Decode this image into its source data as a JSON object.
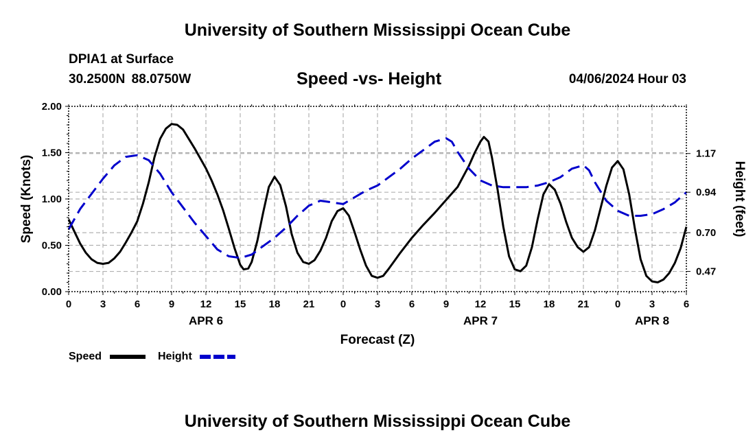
{
  "page": {
    "title": "University of Southern Mississippi Ocean Cube",
    "footer_title": "University of Southern Mississippi Ocean Cube",
    "station": "DPIA1 at Surface",
    "coordinates": "30.2500N  88.0750W",
    "datetime": "04/06/2024 Hour 03"
  },
  "colors": {
    "speed": "#000000",
    "height": "#0000cc",
    "grid": "#b0b0b0",
    "axis": "#000000"
  },
  "chart_data": {
    "type": "line",
    "title": "Speed -vs- Height",
    "xlabel": "Forecast (Z)",
    "ylabel": "Speed (Knots)",
    "y2label": "Height (feet)",
    "x_unit": "hours since 00Z APR 6",
    "xlim": [
      0,
      54
    ],
    "ylim": [
      0,
      2
    ],
    "y2lim": [
      0.35,
      1.45
    ],
    "grid": true,
    "x_ticks": [
      {
        "x": 0,
        "label": "0"
      },
      {
        "x": 3,
        "label": "3"
      },
      {
        "x": 6,
        "label": "6"
      },
      {
        "x": 9,
        "label": "9"
      },
      {
        "x": 12,
        "label": "12"
      },
      {
        "x": 15,
        "label": "15"
      },
      {
        "x": 18,
        "label": "18"
      },
      {
        "x": 21,
        "label": "21"
      },
      {
        "x": 24,
        "label": "0"
      },
      {
        "x": 27,
        "label": "3"
      },
      {
        "x": 30,
        "label": "6"
      },
      {
        "x": 33,
        "label": "9"
      },
      {
        "x": 36,
        "label": "12"
      },
      {
        "x": 39,
        "label": "15"
      },
      {
        "x": 42,
        "label": "18"
      },
      {
        "x": 45,
        "label": "21"
      },
      {
        "x": 48,
        "label": "0"
      },
      {
        "x": 51,
        "label": "3"
      },
      {
        "x": 54,
        "label": "6"
      }
    ],
    "date_labels": [
      {
        "x": 12,
        "label": "APR 6"
      },
      {
        "x": 36,
        "label": "APR 7"
      },
      {
        "x": 51,
        "label": "APR 8"
      }
    ],
    "y_ticks": [
      {
        "v": 0.0,
        "label": "0.00"
      },
      {
        "v": 0.5,
        "label": "0.50"
      },
      {
        "v": 1.0,
        "label": "1.00"
      },
      {
        "v": 1.5,
        "label": "1.50"
      },
      {
        "v": 2.0,
        "label": "2.00"
      }
    ],
    "y2_ticks": [
      {
        "v": 0.47,
        "label": "0.47"
      },
      {
        "v": 0.7,
        "label": "0.70"
      },
      {
        "v": 0.94,
        "label": "0.94"
      },
      {
        "v": 1.17,
        "label": "1.17"
      }
    ],
    "legend": {
      "position": "bottom-left",
      "entries": [
        {
          "name": "Speed",
          "style": "solid",
          "color_key": "speed"
        },
        {
          "name": "Height",
          "style": "dashed",
          "color_key": "height"
        }
      ]
    },
    "series": [
      {
        "name": "Speed",
        "axis": "left",
        "style": "solid",
        "points": [
          [
            0,
            0.78
          ],
          [
            0.5,
            0.65
          ],
          [
            1,
            0.52
          ],
          [
            1.5,
            0.42
          ],
          [
            2,
            0.35
          ],
          [
            2.5,
            0.31
          ],
          [
            3,
            0.3
          ],
          [
            3.5,
            0.31
          ],
          [
            4,
            0.36
          ],
          [
            4.5,
            0.43
          ],
          [
            5,
            0.53
          ],
          [
            5.5,
            0.64
          ],
          [
            6,
            0.76
          ],
          [
            6.5,
            0.95
          ],
          [
            7,
            1.18
          ],
          [
            7.5,
            1.45
          ],
          [
            8,
            1.65
          ],
          [
            8.5,
            1.76
          ],
          [
            9,
            1.81
          ],
          [
            9.5,
            1.8
          ],
          [
            10,
            1.75
          ],
          [
            10.5,
            1.65
          ],
          [
            11,
            1.55
          ],
          [
            11.5,
            1.44
          ],
          [
            12,
            1.33
          ],
          [
            12.5,
            1.2
          ],
          [
            13,
            1.05
          ],
          [
            13.5,
            0.88
          ],
          [
            14,
            0.68
          ],
          [
            14.5,
            0.47
          ],
          [
            15,
            0.29
          ],
          [
            15.3,
            0.24
          ],
          [
            15.7,
            0.25
          ],
          [
            16,
            0.32
          ],
          [
            16.5,
            0.55
          ],
          [
            17,
            0.85
          ],
          [
            17.5,
            1.13
          ],
          [
            18,
            1.24
          ],
          [
            18.5,
            1.15
          ],
          [
            19,
            0.92
          ],
          [
            19.5,
            0.62
          ],
          [
            20,
            0.42
          ],
          [
            20.5,
            0.32
          ],
          [
            21,
            0.3
          ],
          [
            21.5,
            0.34
          ],
          [
            22,
            0.44
          ],
          [
            22.5,
            0.58
          ],
          [
            23,
            0.76
          ],
          [
            23.5,
            0.87
          ],
          [
            24,
            0.9
          ],
          [
            24.5,
            0.82
          ],
          [
            25,
            0.64
          ],
          [
            25.5,
            0.45
          ],
          [
            26,
            0.28
          ],
          [
            26.5,
            0.17
          ],
          [
            27,
            0.15
          ],
          [
            27.5,
            0.17
          ],
          [
            28,
            0.25
          ],
          [
            29,
            0.42
          ],
          [
            30,
            0.58
          ],
          [
            31,
            0.72
          ],
          [
            32,
            0.85
          ],
          [
            33,
            0.99
          ],
          [
            34,
            1.13
          ],
          [
            35,
            1.36
          ],
          [
            35.5,
            1.5
          ],
          [
            36,
            1.62
          ],
          [
            36.3,
            1.67
          ],
          [
            36.7,
            1.62
          ],
          [
            37,
            1.45
          ],
          [
            37.5,
            1.1
          ],
          [
            38,
            0.7
          ],
          [
            38.5,
            0.38
          ],
          [
            39,
            0.24
          ],
          [
            39.5,
            0.22
          ],
          [
            40,
            0.28
          ],
          [
            40.5,
            0.48
          ],
          [
            41,
            0.78
          ],
          [
            41.5,
            1.05
          ],
          [
            42,
            1.16
          ],
          [
            42.5,
            1.1
          ],
          [
            43,
            0.95
          ],
          [
            43.5,
            0.75
          ],
          [
            44,
            0.58
          ],
          [
            44.5,
            0.48
          ],
          [
            45,
            0.43
          ],
          [
            45.5,
            0.48
          ],
          [
            46,
            0.66
          ],
          [
            46.5,
            0.9
          ],
          [
            47,
            1.14
          ],
          [
            47.5,
            1.34
          ],
          [
            48,
            1.41
          ],
          [
            48.5,
            1.32
          ],
          [
            49,
            1.05
          ],
          [
            49.5,
            0.68
          ],
          [
            50,
            0.35
          ],
          [
            50.5,
            0.17
          ],
          [
            51,
            0.11
          ],
          [
            51.5,
            0.1
          ],
          [
            52,
            0.13
          ],
          [
            52.5,
            0.2
          ],
          [
            53,
            0.31
          ],
          [
            53.5,
            0.47
          ],
          [
            54,
            0.7
          ]
        ]
      },
      {
        "name": "Height",
        "axis": "right",
        "style": "dashed",
        "points": [
          [
            0,
            0.72
          ],
          [
            1,
            0.84
          ],
          [
            2,
            0.93
          ],
          [
            3,
            1.02
          ],
          [
            4,
            1.1
          ],
          [
            5,
            1.15
          ],
          [
            6,
            1.16
          ],
          [
            7,
            1.13
          ],
          [
            8,
            1.05
          ],
          [
            9,
            0.94
          ],
          [
            10,
            0.85
          ],
          [
            11,
            0.76
          ],
          [
            12,
            0.68
          ],
          [
            13,
            0.6
          ],
          [
            14,
            0.56
          ],
          [
            15,
            0.55
          ],
          [
            16,
            0.57
          ],
          [
            17,
            0.62
          ],
          [
            18,
            0.67
          ],
          [
            19,
            0.73
          ],
          [
            20,
            0.8
          ],
          [
            21,
            0.86
          ],
          [
            22,
            0.89
          ],
          [
            23,
            0.88
          ],
          [
            24,
            0.87
          ],
          [
            25,
            0.91
          ],
          [
            26,
            0.95
          ],
          [
            27,
            0.98
          ],
          [
            28,
            1.03
          ],
          [
            29,
            1.08
          ],
          [
            30,
            1.14
          ],
          [
            31,
            1.19
          ],
          [
            32,
            1.24
          ],
          [
            33,
            1.26
          ],
          [
            33.5,
            1.24
          ],
          [
            34,
            1.18
          ],
          [
            35,
            1.08
          ],
          [
            36,
            1.01
          ],
          [
            37,
            0.98
          ],
          [
            38,
            0.97
          ],
          [
            39,
            0.97
          ],
          [
            40,
            0.97
          ],
          [
            41,
            0.98
          ],
          [
            42,
            1.0
          ],
          [
            43,
            1.03
          ],
          [
            44,
            1.08
          ],
          [
            45,
            1.1
          ],
          [
            45.5,
            1.07
          ],
          [
            46,
            1.0
          ],
          [
            47,
            0.89
          ],
          [
            48,
            0.83
          ],
          [
            49,
            0.8
          ],
          [
            50,
            0.8
          ],
          [
            51,
            0.81
          ],
          [
            52,
            0.84
          ],
          [
            53,
            0.88
          ],
          [
            54,
            0.94
          ]
        ]
      }
    ]
  }
}
